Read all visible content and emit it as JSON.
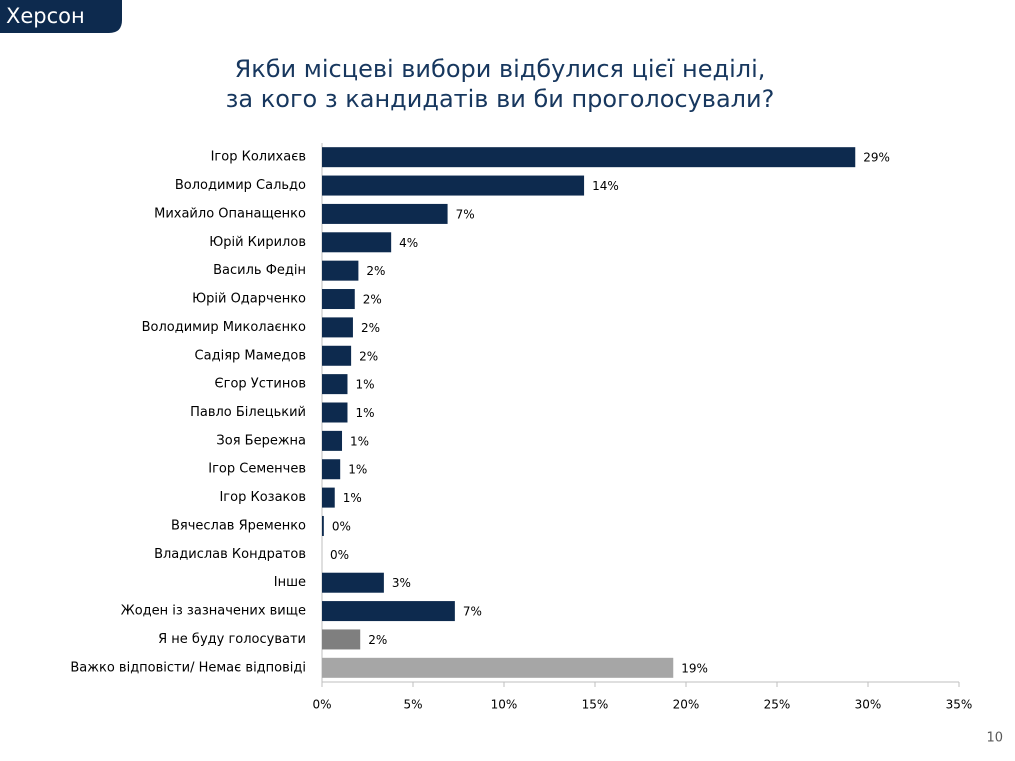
{
  "header": {
    "tag": "Херсон"
  },
  "footer": {
    "page": "10"
  },
  "chart_data": {
    "type": "hbar",
    "title": [
      "Якби місцеві вибори відбулися цієї неділі,",
      "за кого з кандидатів ви би проголосували?"
    ],
    "categories": [
      "Ігор Колихаєв",
      "Володимир Сальдо",
      "Михайло Опанащенко",
      "Юрій Кирилов",
      "Василь Федін",
      "Юрій Одарченко",
      "Володимир Миколаєнко",
      "Садіяр Мамедов",
      "Єгор Устинов",
      "Павло Білецький",
      "Зоя Бережна",
      "Ігор Семенчев",
      "Ігор Козаков",
      "Вячеслав Яременко",
      "Владислав Кондратов",
      "Інше",
      "Жоден із зазначених вище",
      "Я не буду голосувати",
      "Важко відповісти/ Немає відповіді"
    ],
    "values": [
      29.3,
      14.4,
      6.9,
      3.8,
      2.0,
      1.8,
      1.7,
      1.6,
      1.4,
      1.4,
      1.1,
      1.0,
      0.7,
      0.1,
      0,
      3.4,
      7.3,
      2.1,
      19.3
    ],
    "value_labels": [
      "29%",
      "14%",
      "7%",
      "4%",
      "2%",
      "2%",
      "2%",
      "2%",
      "1%",
      "1%",
      "1%",
      "1%",
      "1%",
      "0%",
      "0%",
      "3%",
      "7%",
      "2%",
      "19%"
    ],
    "colors": [
      "#0d2a4e",
      "#0d2a4e",
      "#0d2a4e",
      "#0d2a4e",
      "#0d2a4e",
      "#0d2a4e",
      "#0d2a4e",
      "#0d2a4e",
      "#0d2a4e",
      "#0d2a4e",
      "#0d2a4e",
      "#0d2a4e",
      "#0d2a4e",
      "#0d2a4e",
      "#0d2a4e",
      "#0d2a4e",
      "#0d2a4e",
      "#7f7f7f",
      "#a6a6a6"
    ],
    "xlim": [
      0,
      35
    ],
    "xticks": [
      {
        "value": 0,
        "label": "0%"
      },
      {
        "value": 5,
        "label": "5%"
      },
      {
        "value": 10,
        "label": "10%"
      },
      {
        "value": 15,
        "label": "15%"
      },
      {
        "value": 20,
        "label": "20%"
      },
      {
        "value": 25,
        "label": "25%"
      },
      {
        "value": 30,
        "label": "30%"
      },
      {
        "value": 35,
        "label": "35%"
      }
    ]
  }
}
